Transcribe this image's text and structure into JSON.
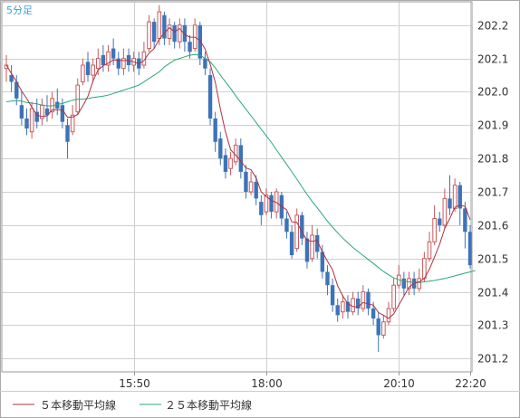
{
  "chart_data": {
    "type": "candlestick",
    "period_label": "5分足",
    "y_ticks": [
      201.2,
      201.3,
      201.4,
      201.5,
      201.6,
      201.7,
      201.8,
      201.9,
      202.0,
      202.1,
      202.2
    ],
    "ylim": [
      201.16,
      202.27
    ],
    "x_ticks": [
      "15:50",
      "18:00",
      "20:10",
      "22:20"
    ],
    "grid": true,
    "legend_position": "bottom",
    "colors": {
      "up": "#c85a5a",
      "down": "#3d73b8",
      "ma5": "#b03040",
      "ma25": "#2aa878",
      "grid": "#cfcfcf",
      "axis": "#999999"
    },
    "series": [
      {
        "name": "５本移動平均線",
        "role": "ma5"
      },
      {
        "name": "２５本移動平均線",
        "role": "ma25"
      }
    ],
    "ma25": [
      201.97,
      201.972,
      201.974,
      201.972,
      201.968,
      201.966,
      201.964,
      201.96,
      201.958,
      201.958,
      201.962,
      201.965,
      201.97,
      201.975,
      201.978,
      201.978,
      201.98,
      201.983,
      201.985,
      201.987,
      201.99,
      201.995,
      202.0,
      202.005,
      202.01,
      202.015,
      202.02,
      202.03,
      202.04,
      202.05,
      202.06,
      202.075,
      202.085,
      202.095,
      202.1,
      202.105,
      202.11,
      202.112,
      202.11,
      202.1,
      202.09,
      202.072,
      202.05,
      202.03,
      202.01,
      201.988,
      201.968,
      201.948,
      201.928,
      201.908,
      201.888,
      201.868,
      201.848,
      201.826,
      201.804,
      201.782,
      201.76,
      201.738,
      201.715,
      201.692,
      201.671,
      201.652,
      201.632,
      201.612,
      201.594,
      201.577,
      201.561,
      201.547,
      201.533,
      201.521,
      201.509,
      201.497,
      201.485,
      201.473,
      201.461,
      201.451,
      201.442,
      201.436,
      201.432,
      201.43,
      201.428,
      201.428,
      201.43,
      201.432,
      201.434,
      201.437,
      201.44,
      201.444,
      201.448,
      201.452,
      201.456,
      201.46,
      201.464
    ],
    "candles": [
      [
        202.07,
        202.08,
        202.11,
        202.03
      ],
      [
        202.05,
        202.03,
        202.08,
        202.0
      ],
      [
        202.03,
        201.98,
        202.05,
        201.96
      ],
      [
        201.96,
        201.92,
        202.0,
        201.9
      ],
      [
        201.92,
        201.89,
        201.95,
        201.87
      ],
      [
        201.88,
        201.95,
        201.97,
        201.86
      ],
      [
        201.94,
        201.91,
        201.98,
        201.89
      ],
      [
        201.92,
        201.96,
        201.98,
        201.9
      ],
      [
        201.95,
        201.93,
        201.99,
        201.91
      ],
      [
        201.94,
        201.98,
        202.0,
        201.92
      ],
      [
        201.97,
        201.95,
        202.01,
        201.93
      ],
      [
        201.96,
        201.91,
        201.98,
        201.89
      ],
      [
        201.9,
        201.85,
        201.92,
        201.8
      ],
      [
        201.88,
        201.93,
        201.96,
        201.87
      ],
      [
        201.94,
        202.02,
        202.04,
        201.93
      ],
      [
        202.03,
        202.08,
        202.1,
        202.02
      ],
      [
        202.09,
        202.05,
        202.12,
        202.03
      ],
      [
        202.05,
        202.08,
        202.1,
        202.03
      ],
      [
        202.07,
        202.1,
        202.13,
        202.05
      ],
      [
        202.11,
        202.08,
        202.14,
        202.06
      ],
      [
        202.08,
        202.12,
        202.14,
        202.06
      ],
      [
        202.13,
        202.1,
        202.16,
        202.08
      ],
      [
        202.1,
        202.07,
        202.12,
        202.05
      ],
      [
        202.07,
        202.1,
        202.13,
        202.05
      ],
      [
        202.11,
        202.08,
        202.13,
        202.06
      ],
      [
        202.08,
        202.1,
        202.12,
        202.06
      ],
      [
        202.1,
        202.07,
        202.12,
        202.05
      ],
      [
        202.08,
        202.12,
        202.15,
        202.07
      ],
      [
        202.13,
        202.21,
        202.23,
        202.12
      ],
      [
        202.21,
        202.15,
        202.22,
        202.13
      ],
      [
        202.16,
        202.24,
        202.26,
        202.14
      ],
      [
        202.23,
        202.16,
        202.24,
        202.14
      ],
      [
        202.16,
        202.2,
        202.22,
        202.14
      ],
      [
        202.2,
        202.15,
        202.21,
        202.13
      ],
      [
        202.15,
        202.2,
        202.22,
        202.13
      ],
      [
        202.2,
        202.15,
        202.22,
        202.12
      ],
      [
        202.15,
        202.12,
        202.17,
        202.1
      ],
      [
        202.13,
        202.2,
        202.22,
        202.12
      ],
      [
        202.2,
        202.1,
        202.21,
        202.08
      ],
      [
        202.1,
        202.07,
        202.12,
        202.05
      ],
      [
        202.05,
        201.92,
        202.07,
        201.9
      ],
      [
        201.92,
        201.85,
        201.94,
        201.82
      ],
      [
        201.86,
        201.8,
        201.88,
        201.78
      ],
      [
        201.81,
        201.76,
        201.83,
        201.74
      ],
      [
        201.77,
        201.8,
        201.82,
        201.75
      ],
      [
        201.79,
        201.84,
        201.86,
        201.78
      ],
      [
        201.84,
        201.76,
        201.86,
        201.74
      ],
      [
        201.76,
        201.7,
        201.78,
        201.68
      ],
      [
        201.7,
        201.73,
        201.76,
        201.69
      ],
      [
        201.73,
        201.68,
        201.75,
        201.66
      ],
      [
        201.67,
        201.63,
        201.69,
        201.6
      ],
      [
        201.64,
        201.69,
        201.71,
        201.63
      ],
      [
        201.69,
        201.64,
        201.7,
        201.62
      ],
      [
        201.64,
        201.7,
        201.71,
        201.62
      ],
      [
        201.69,
        201.62,
        201.7,
        201.6
      ],
      [
        201.62,
        201.58,
        201.64,
        201.56
      ],
      [
        201.58,
        201.51,
        201.6,
        201.5
      ],
      [
        201.53,
        201.63,
        201.65,
        201.52
      ],
      [
        201.63,
        201.56,
        201.64,
        201.54
      ],
      [
        201.56,
        201.49,
        201.58,
        201.47
      ],
      [
        201.5,
        201.57,
        201.6,
        201.49
      ],
      [
        201.57,
        201.52,
        201.59,
        201.5
      ],
      [
        201.52,
        201.46,
        201.54,
        201.44
      ],
      [
        201.46,
        201.42,
        201.48,
        201.39
      ],
      [
        201.42,
        201.36,
        201.44,
        201.34
      ],
      [
        201.36,
        201.33,
        201.38,
        201.31
      ],
      [
        201.34,
        201.37,
        201.39,
        201.32
      ],
      [
        201.37,
        201.34,
        201.39,
        201.32
      ],
      [
        201.34,
        201.38,
        201.4,
        201.33
      ],
      [
        201.38,
        201.35,
        201.4,
        201.33
      ],
      [
        201.35,
        201.4,
        201.42,
        201.34
      ],
      [
        201.4,
        201.35,
        201.41,
        201.33
      ],
      [
        201.35,
        201.32,
        201.37,
        201.3
      ],
      [
        201.32,
        201.27,
        201.34,
        201.22
      ],
      [
        201.27,
        201.31,
        201.33,
        201.26
      ],
      [
        201.31,
        201.35,
        201.37,
        201.3
      ],
      [
        201.35,
        201.42,
        201.44,
        201.34
      ],
      [
        201.42,
        201.45,
        201.48,
        201.41
      ],
      [
        201.44,
        201.41,
        201.46,
        201.39
      ],
      [
        201.41,
        201.44,
        201.46,
        201.39
      ],
      [
        201.44,
        201.41,
        201.46,
        201.39
      ],
      [
        201.41,
        201.44,
        201.47,
        201.4
      ],
      [
        201.44,
        201.5,
        201.52,
        201.43
      ],
      [
        201.5,
        201.55,
        201.58,
        201.49
      ],
      [
        201.55,
        201.62,
        201.66,
        201.54
      ],
      [
        201.62,
        201.6,
        201.64,
        201.58
      ],
      [
        201.6,
        201.68,
        201.71,
        201.59
      ],
      [
        201.68,
        201.65,
        201.75,
        201.63
      ],
      [
        201.65,
        201.72,
        201.74,
        201.64
      ],
      [
        201.72,
        201.65,
        201.73,
        201.6
      ],
      [
        201.65,
        201.58,
        201.67,
        201.53
      ],
      [
        201.58,
        201.48,
        201.6,
        201.47
      ]
    ]
  }
}
